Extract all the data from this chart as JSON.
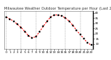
{
  "title": "Milwaukee Weather Outdoor Temperature per Hour (Last 24 Hours)",
  "x_values": [
    0,
    1,
    2,
    3,
    4,
    5,
    6,
    7,
    8,
    9,
    10,
    11,
    12,
    13,
    14,
    15,
    16,
    17,
    18,
    19,
    20,
    21,
    22,
    23
  ],
  "y_values": [
    36,
    34,
    32,
    29,
    26,
    22,
    18,
    16,
    17,
    22,
    27,
    32,
    36,
    38,
    38,
    37,
    35,
    32,
    28,
    23,
    19,
    15,
    11,
    9
  ],
  "ylim": [
    5,
    42
  ],
  "ytick_vals": [
    10,
    15,
    20,
    25,
    30,
    35,
    40
  ],
  "ytick_labels": [
    "10",
    "15",
    "20",
    "25",
    "30",
    "35",
    "40"
  ],
  "xlim": [
    -0.5,
    23.5
  ],
  "vgrid_positions": [
    0,
    4,
    8,
    12,
    16,
    20
  ],
  "line_color": "#ff0000",
  "marker_color": "#000000",
  "bg_color": "#ffffff",
  "grid_color": "#888888",
  "title_fontsize": 3.8,
  "tick_fontsize": 3.0,
  "line_width": 0.8,
  "marker_size": 1.5
}
